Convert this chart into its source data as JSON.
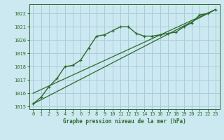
{
  "title": "Graphe pression niveau de la mer (hPa)",
  "background_color": "#cce8f0",
  "grid_color": "#aaccda",
  "line_color": "#2d6a2d",
  "xlim": [
    -0.5,
    23.5
  ],
  "ylim": [
    1014.8,
    1022.7
  ],
  "yticks": [
    1015,
    1016,
    1017,
    1018,
    1019,
    1020,
    1021,
    1022
  ],
  "xticks": [
    0,
    1,
    2,
    3,
    4,
    5,
    6,
    7,
    8,
    9,
    10,
    11,
    12,
    13,
    14,
    15,
    16,
    17,
    18,
    19,
    20,
    21,
    22,
    23
  ],
  "series1_x": [
    0,
    1,
    2,
    3,
    4,
    5,
    6,
    7,
    8,
    9,
    10,
    11,
    12,
    13,
    14,
    15,
    16,
    17,
    18,
    19,
    20,
    21,
    22,
    23
  ],
  "series1_y": [
    1015.2,
    1015.7,
    1016.5,
    1017.1,
    1018.0,
    1018.1,
    1018.5,
    1019.4,
    1020.3,
    1020.4,
    1020.7,
    1021.0,
    1021.0,
    1020.5,
    1020.3,
    1020.3,
    1020.4,
    1020.5,
    1020.6,
    1021.0,
    1021.3,
    1021.9,
    1022.0,
    1022.3
  ],
  "line1_x": [
    0,
    23
  ],
  "line1_y": [
    1015.2,
    1022.3
  ],
  "line2_x": [
    0,
    23
  ],
  "line2_y": [
    1016.0,
    1022.3
  ],
  "ylabel_fontsize": 5.5,
  "tick_fontsize": 5.0
}
